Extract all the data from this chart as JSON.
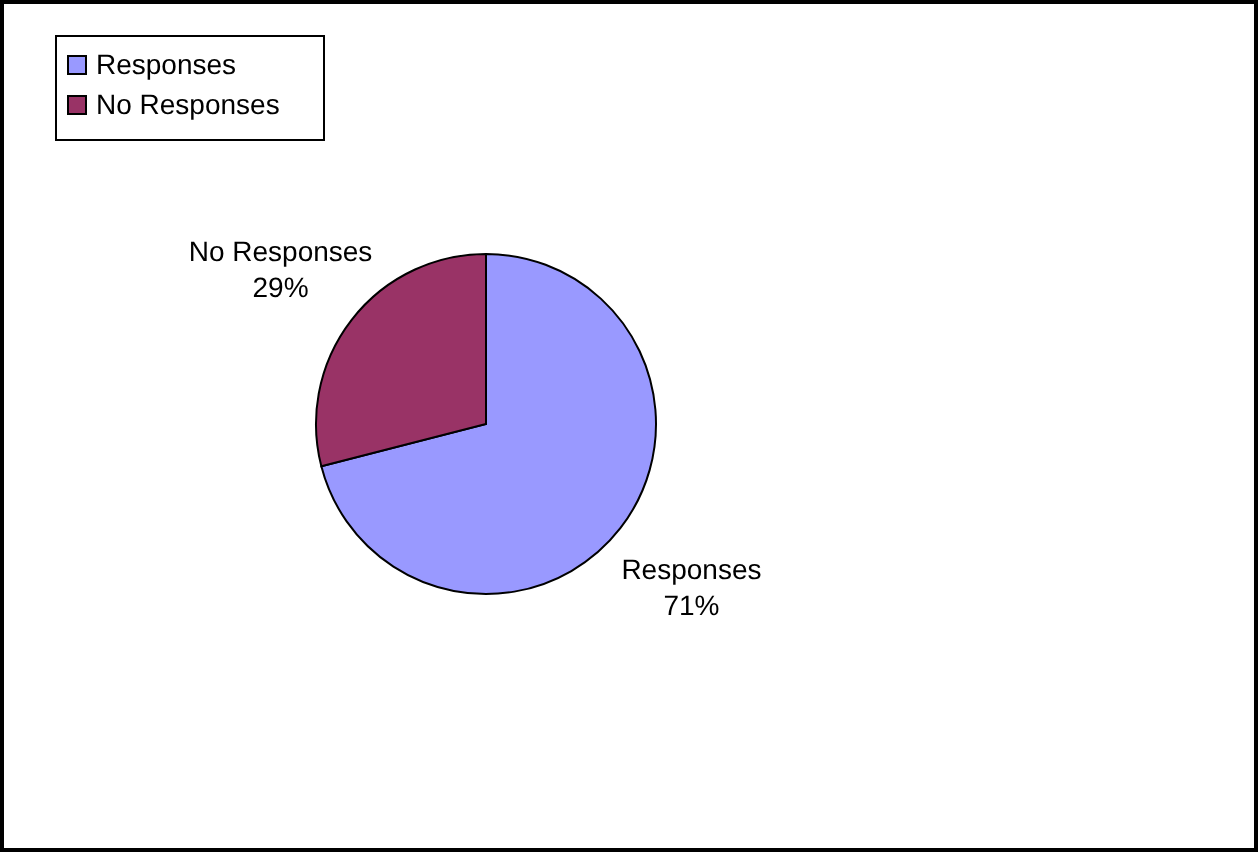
{
  "chart_data": {
    "type": "pie",
    "categories": [
      "Responses",
      "No Responses"
    ],
    "values": [
      71,
      29
    ],
    "colors": [
      "#9999ff",
      "#993366"
    ],
    "value_labels": [
      "71%",
      "29%"
    ],
    "legend": "top left"
  }
}
